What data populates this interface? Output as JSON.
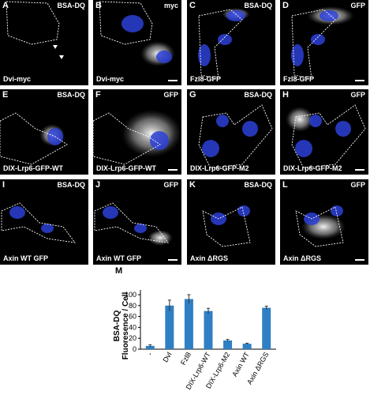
{
  "panels": [
    {
      "letter": "A",
      "stain": "BSA-DQ",
      "caption": "Dvi-myc"
    },
    {
      "letter": "B",
      "stain": "myc",
      "caption": "Dvi-myc"
    },
    {
      "letter": "C",
      "stain": "BSA-DQ",
      "caption": "Fzl8-GFP"
    },
    {
      "letter": "D",
      "stain": "GFP",
      "caption": "Fzl8-GFP"
    },
    {
      "letter": "E",
      "stain": "BSA-DQ",
      "caption": "DIX-Lrp6-GFP-WT"
    },
    {
      "letter": "F",
      "stain": "GFP",
      "caption": "DIX-Lrp6-GFP-WT"
    },
    {
      "letter": "G",
      "stain": "BSA-DQ",
      "caption": "DIX-Lrp6-GFP-M2"
    },
    {
      "letter": "H",
      "stain": "GFP",
      "caption": "DIX-Lrp6-GFP-M2"
    },
    {
      "letter": "I",
      "stain": "BSA-DQ",
      "caption": "Axin WT GFP"
    },
    {
      "letter": "J",
      "stain": "GFP",
      "caption": "Axin WT GFP"
    },
    {
      "letter": "K",
      "stain": "BSA-DQ",
      "caption": "Axin ΔRGS"
    },
    {
      "letter": "L",
      "stain": "GFP",
      "caption": "Axin ΔRGS"
    }
  ],
  "colors": {
    "nucleus": "#2c3fd6",
    "bar": "#2f7fc4",
    "panel_bg": "#000000"
  },
  "chart_data": {
    "type": "bar",
    "panel_letter": "M",
    "ylabel": [
      "BSA-DQ",
      "Fluoresence / Cell"
    ],
    "categories": [
      "-",
      "Dvl",
      "Fzl8",
      "DIX-Lrp6-WT",
      "DIX-Lrp6-M2",
      "Axin WT",
      "Axin ΔRGS"
    ],
    "values": [
      6,
      80,
      92,
      70,
      16,
      10,
      76
    ],
    "errors": [
      2,
      10,
      8,
      5,
      2,
      1,
      3
    ],
    "ylim": [
      0,
      100
    ],
    "yticks": [
      0,
      20,
      40,
      60,
      80,
      100
    ]
  }
}
